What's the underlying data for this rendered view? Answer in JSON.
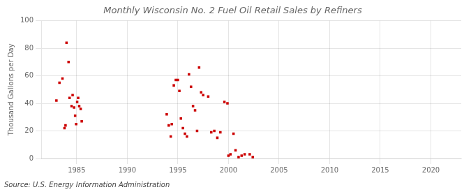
{
  "chart_data": {
    "type": "scatter",
    "title": "Monthly Wisconsin No. 2 Fuel Oil Retail Sales by Refiners",
    "ylabel": "Thousand Gallons per Day",
    "annotation": "Source: U.S. Energy Information Administration",
    "color": "#cc0000",
    "marker": "square",
    "grid": true,
    "xlim": [
      1981.5,
      2023
    ],
    "ylim": [
      0,
      100
    ],
    "xticks": [
      1985,
      1990,
      1995,
      2000,
      2005,
      2010,
      2015,
      2020
    ],
    "yticks": [
      0,
      20,
      40,
      60,
      80,
      100
    ],
    "x": [
      1983.0,
      1983.3,
      1983.6,
      1983.8,
      1983.9,
      1984.0,
      1984.2,
      1984.3,
      1984.5,
      1984.6,
      1984.75,
      1984.85,
      1984.95,
      1985.05,
      1985.15,
      1985.25,
      1985.4,
      1985.5,
      1993.9,
      1994.1,
      1994.3,
      1994.4,
      1994.6,
      1994.8,
      1995.0,
      1995.15,
      1995.3,
      1995.5,
      1995.7,
      1995.9,
      1996.1,
      1996.3,
      1996.5,
      1996.7,
      1996.9,
      1997.1,
      1997.3,
      1997.5,
      1998.0,
      1998.3,
      1998.6,
      1998.9,
      1999.2,
      1999.6,
      1999.9,
      2000.0,
      2000.2,
      2000.5,
      2000.7,
      2001.0,
      2001.3,
      2001.6,
      2002.1,
      2002.4
    ],
    "values": [
      42,
      55,
      58,
      22,
      24,
      84,
      70,
      44,
      38,
      46,
      37,
      31,
      25,
      41,
      44,
      38,
      36,
      27,
      32,
      24,
      16,
      25,
      53,
      57,
      57,
      49,
      29,
      22,
      18,
      16,
      61,
      52,
      38,
      35,
      20,
      66,
      48,
      46,
      45,
      19,
      20,
      15,
      19,
      41,
      40,
      2,
      3,
      18,
      6,
      1,
      2,
      3,
      3,
      1
    ]
  }
}
